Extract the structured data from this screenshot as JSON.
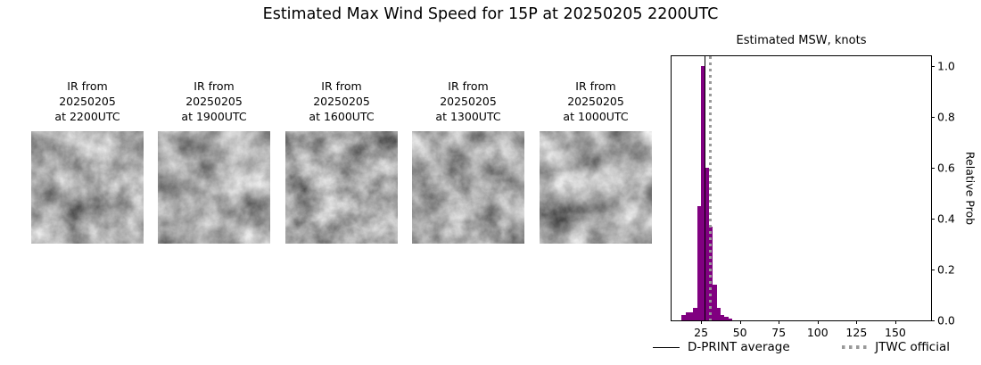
{
  "page_title": "Estimated Max Wind Speed for 15P at 20250205 2200UTC",
  "ir_panels": [
    {
      "lines": [
        "IR from",
        "20250205",
        "at 2200UTC"
      ]
    },
    {
      "lines": [
        "IR from",
        "20250205",
        "at 1900UTC"
      ]
    },
    {
      "lines": [
        "IR from",
        "20250205",
        "at 1600UTC"
      ]
    },
    {
      "lines": [
        "IR from",
        "20250205",
        "at 1300UTC"
      ]
    },
    {
      "lines": [
        "IR from",
        "20250205",
        "at 1000UTC"
      ]
    }
  ],
  "chart_data": {
    "type": "bar",
    "title": "Estimated MSW, knots",
    "xlabel": "",
    "ylabel": "Relative Prob",
    "xlim": [
      6,
      173
    ],
    "ylim": [
      0,
      1.04
    ],
    "xticks": [
      25,
      50,
      75,
      100,
      125,
      150
    ],
    "yticks": [
      0.0,
      0.2,
      0.4,
      0.6,
      0.8,
      1.0
    ],
    "grid": false,
    "bar_color": "#800080",
    "bin_width": 2.5,
    "bars": [
      {
        "x": 12.5,
        "prob": 0.02
      },
      {
        "x": 15.0,
        "prob": 0.03
      },
      {
        "x": 17.5,
        "prob": 0.03
      },
      {
        "x": 20.0,
        "prob": 0.05
      },
      {
        "x": 22.5,
        "prob": 0.45
      },
      {
        "x": 25.0,
        "prob": 1.0
      },
      {
        "x": 27.5,
        "prob": 0.6
      },
      {
        "x": 30.0,
        "prob": 0.37
      },
      {
        "x": 32.5,
        "prob": 0.14
      },
      {
        "x": 35.0,
        "prob": 0.05
      },
      {
        "x": 37.5,
        "prob": 0.02
      },
      {
        "x": 40.0,
        "prob": 0.015
      },
      {
        "x": 42.5,
        "prob": 0.008
      }
    ],
    "lines": [
      {
        "name": "D-PRINT average",
        "x": 27,
        "style": "solid",
        "color": "#000000"
      },
      {
        "name": "JTWC official",
        "x": 30,
        "style": "dotted",
        "color": "#999999"
      }
    ],
    "legend_position": "bottom"
  }
}
